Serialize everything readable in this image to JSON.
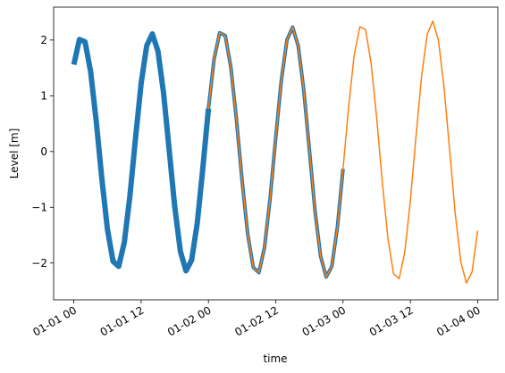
{
  "chart_data": {
    "type": "line",
    "xlabel": "time",
    "ylabel": "Level [m]",
    "x": [
      "01-01 00",
      "01-01 01",
      "01-01 02",
      "01-01 03",
      "01-01 04",
      "01-01 05",
      "01-01 06",
      "01-01 07",
      "01-01 08",
      "01-01 09",
      "01-01 10",
      "01-01 11",
      "01-01 12",
      "01-01 13",
      "01-01 14",
      "01-01 15",
      "01-01 16",
      "01-01 17",
      "01-01 18",
      "01-01 19",
      "01-01 20",
      "01-01 21",
      "01-01 22",
      "01-01 23",
      "01-02 00",
      "01-02 01",
      "01-02 02",
      "01-02 03",
      "01-02 04",
      "01-02 05",
      "01-02 06",
      "01-02 07",
      "01-02 08",
      "01-02 09",
      "01-02 10",
      "01-02 11",
      "01-02 12",
      "01-02 13",
      "01-02 14",
      "01-02 15",
      "01-02 16",
      "01-02 17",
      "01-02 18",
      "01-02 19",
      "01-02 20",
      "01-02 21",
      "01-02 22",
      "01-02 23",
      "01-03 00",
      "01-03 01",
      "01-03 02",
      "01-03 03",
      "01-03 04",
      "01-03 05",
      "01-03 06",
      "01-03 07",
      "01-03 08",
      "01-03 09",
      "01-03 10",
      "01-03 11",
      "01-03 12",
      "01-03 13",
      "01-03 14",
      "01-03 15",
      "01-03 16",
      "01-03 17",
      "01-03 18",
      "01-03 19",
      "01-03 20",
      "01-03 21",
      "01-03 22",
      "01-03 23",
      "01-04 00"
    ],
    "series": [
      {
        "color": "#1f77b4",
        "linewidth": 6,
        "values": [
          1.56,
          2.01,
          1.97,
          1.43,
          0.54,
          -0.49,
          -1.4,
          -1.97,
          -2.06,
          -1.63,
          -0.8,
          0.24,
          1.22,
          1.9,
          2.11,
          1.8,
          1.05,
          0.03,
          -1.0,
          -1.79,
          -2.14,
          -1.95,
          -1.29,
          -0.3,
          0.77,
          null,
          null,
          null,
          null,
          null,
          null,
          null,
          null,
          null,
          null,
          null,
          null,
          null,
          null,
          null,
          null,
          null,
          null,
          null,
          null,
          null,
          null,
          null,
          null,
          null,
          null,
          null,
          null,
          null,
          null,
          null,
          null,
          null,
          null,
          null,
          null,
          null,
          null,
          null,
          null,
          null,
          null,
          null,
          null,
          null,
          null,
          null,
          null
        ]
      },
      {
        "color": "#1f77b4",
        "linewidth": 4,
        "values": [
          null,
          null,
          null,
          null,
          null,
          null,
          null,
          null,
          null,
          null,
          null,
          null,
          null,
          null,
          null,
          null,
          null,
          null,
          null,
          null,
          null,
          null,
          null,
          null,
          0.77,
          1.65,
          2.13,
          2.08,
          1.51,
          0.57,
          -0.52,
          -1.48,
          -2.08,
          -2.17,
          -1.72,
          -0.84,
          0.25,
          1.28,
          2.0,
          2.23,
          1.9,
          1.1,
          0.03,
          -1.06,
          -1.88,
          -2.25,
          -2.06,
          -1.35,
          -0.31,
          null,
          null,
          null,
          null,
          null,
          null,
          null,
          null,
          null,
          null,
          null,
          null,
          null,
          null,
          null,
          null,
          null,
          null,
          null,
          null,
          null,
          null,
          null,
          null
        ]
      },
      {
        "color": "#ff7f0e",
        "linewidth": 1.5,
        "values": [
          null,
          null,
          null,
          null,
          null,
          null,
          null,
          null,
          null,
          null,
          null,
          null,
          null,
          null,
          null,
          null,
          null,
          null,
          null,
          null,
          null,
          null,
          null,
          null,
          0.77,
          1.65,
          2.13,
          2.08,
          1.51,
          0.57,
          -0.52,
          -1.48,
          -2.08,
          -2.17,
          -1.72,
          -0.84,
          0.25,
          1.28,
          2.0,
          2.23,
          1.9,
          1.1,
          0.03,
          -1.06,
          -1.88,
          -2.25,
          -2.06,
          -1.35,
          -0.31,
          0.81,
          1.74,
          2.24,
          2.19,
          1.59,
          0.6,
          -0.55,
          -1.56,
          -2.19,
          -2.28,
          -1.81,
          -0.88,
          0.26,
          1.35,
          2.1,
          2.34,
          2.0,
          1.16,
          0.03,
          -1.11,
          -1.98,
          -2.36,
          -2.16,
          -1.42
        ]
      }
    ],
    "xticks": [
      "01-01 00",
      "01-01 12",
      "01-02 00",
      "01-02 12",
      "01-03 00",
      "01-03 12",
      "01-04 00"
    ],
    "ylim": [
      -2.66,
      2.59
    ],
    "yticks": [
      {
        "value": -2,
        "label": "−2"
      },
      {
        "value": -1,
        "label": "−1"
      },
      0,
      1,
      2
    ]
  }
}
